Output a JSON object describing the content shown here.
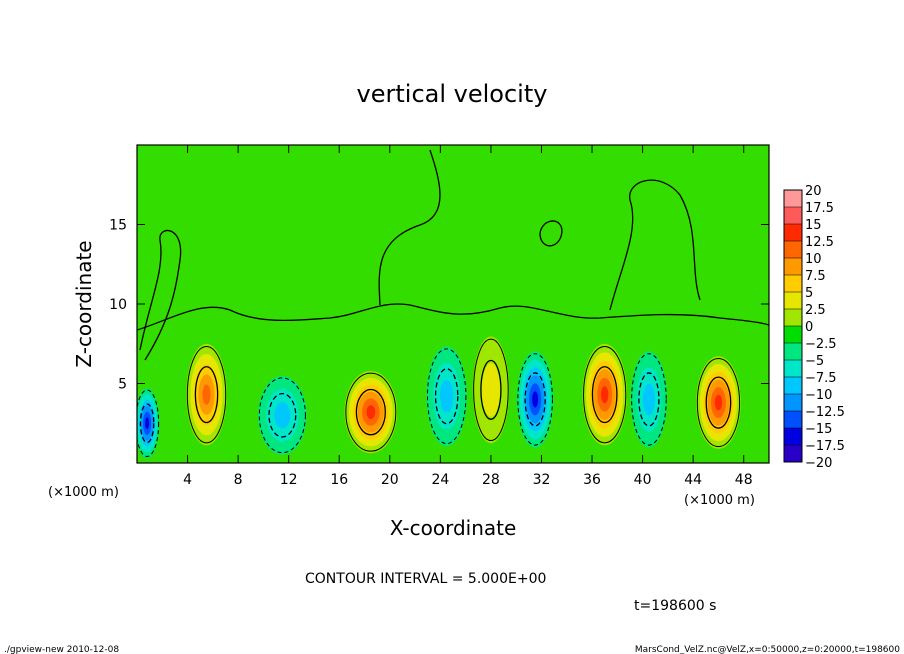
{
  "chart_data": {
    "type": "heatmap",
    "title": "vertical velocity",
    "xlabel": "X-coordinate",
    "ylabel": "Z-coordinate",
    "x_unit": "(×1000 m)",
    "y_unit": "(×1000 m)",
    "xlim": [
      0,
      50
    ],
    "ylim": [
      0,
      20
    ],
    "x_ticks": [
      "4",
      "8",
      "12",
      "16",
      "20",
      "24",
      "28",
      "32",
      "36",
      "40",
      "44",
      "48"
    ],
    "y_ticks": [
      "5",
      "10",
      "15"
    ],
    "colorbar_levels": [
      "20",
      "17.5",
      "15",
      "12.5",
      "10",
      "7.5",
      "5",
      "2.5",
      "0",
      "−2.5",
      "−5",
      "−7.5",
      "−10",
      "−12.5",
      "−15",
      "−17.5",
      "−20"
    ],
    "colorbar_colors": [
      "#ff9999",
      "#ff5a5a",
      "#ff2a00",
      "#ff6600",
      "#ff9900",
      "#ffcc00",
      "#e6e600",
      "#a0e600",
      "#00dd00",
      "#00e680",
      "#00e6c8",
      "#00c8ff",
      "#0096ff",
      "#0050ff",
      "#0000e0",
      "#2800c8",
      "#6400c0"
    ],
    "contour_interval": "CONTOUR INTERVAL = 5.000E+00",
    "time_label": "t=198600 s",
    "cells": [
      {
        "x": 0.8,
        "z": 2.5,
        "w": 0.6,
        "value": -16
      },
      {
        "x": 5.5,
        "z": 4.3,
        "w": 1.0,
        "value": 12
      },
      {
        "x": 11.5,
        "z": 3.0,
        "w": 1.2,
        "value": -7
      },
      {
        "x": 18.5,
        "z": 3.2,
        "w": 1.3,
        "value": 15
      },
      {
        "x": 24.5,
        "z": 4.2,
        "w": 1.0,
        "value": -7
      },
      {
        "x": 28.0,
        "z": 4.6,
        "w": 0.9,
        "value": 5
      },
      {
        "x": 31.5,
        "z": 4.0,
        "w": 0.9,
        "value": -14
      },
      {
        "x": 37.0,
        "z": 4.3,
        "w": 1.1,
        "value": 15
      },
      {
        "x": 40.5,
        "z": 4.0,
        "w": 0.9,
        "value": -8
      },
      {
        "x": 46.0,
        "z": 3.8,
        "w": 1.1,
        "value": 15
      }
    ]
  },
  "footer": {
    "left": "./gpview-new  2010-12-08",
    "right": "MarsCond_VelZ.nc@VelZ,x=0:50000,z=0:20000,t=198600"
  }
}
